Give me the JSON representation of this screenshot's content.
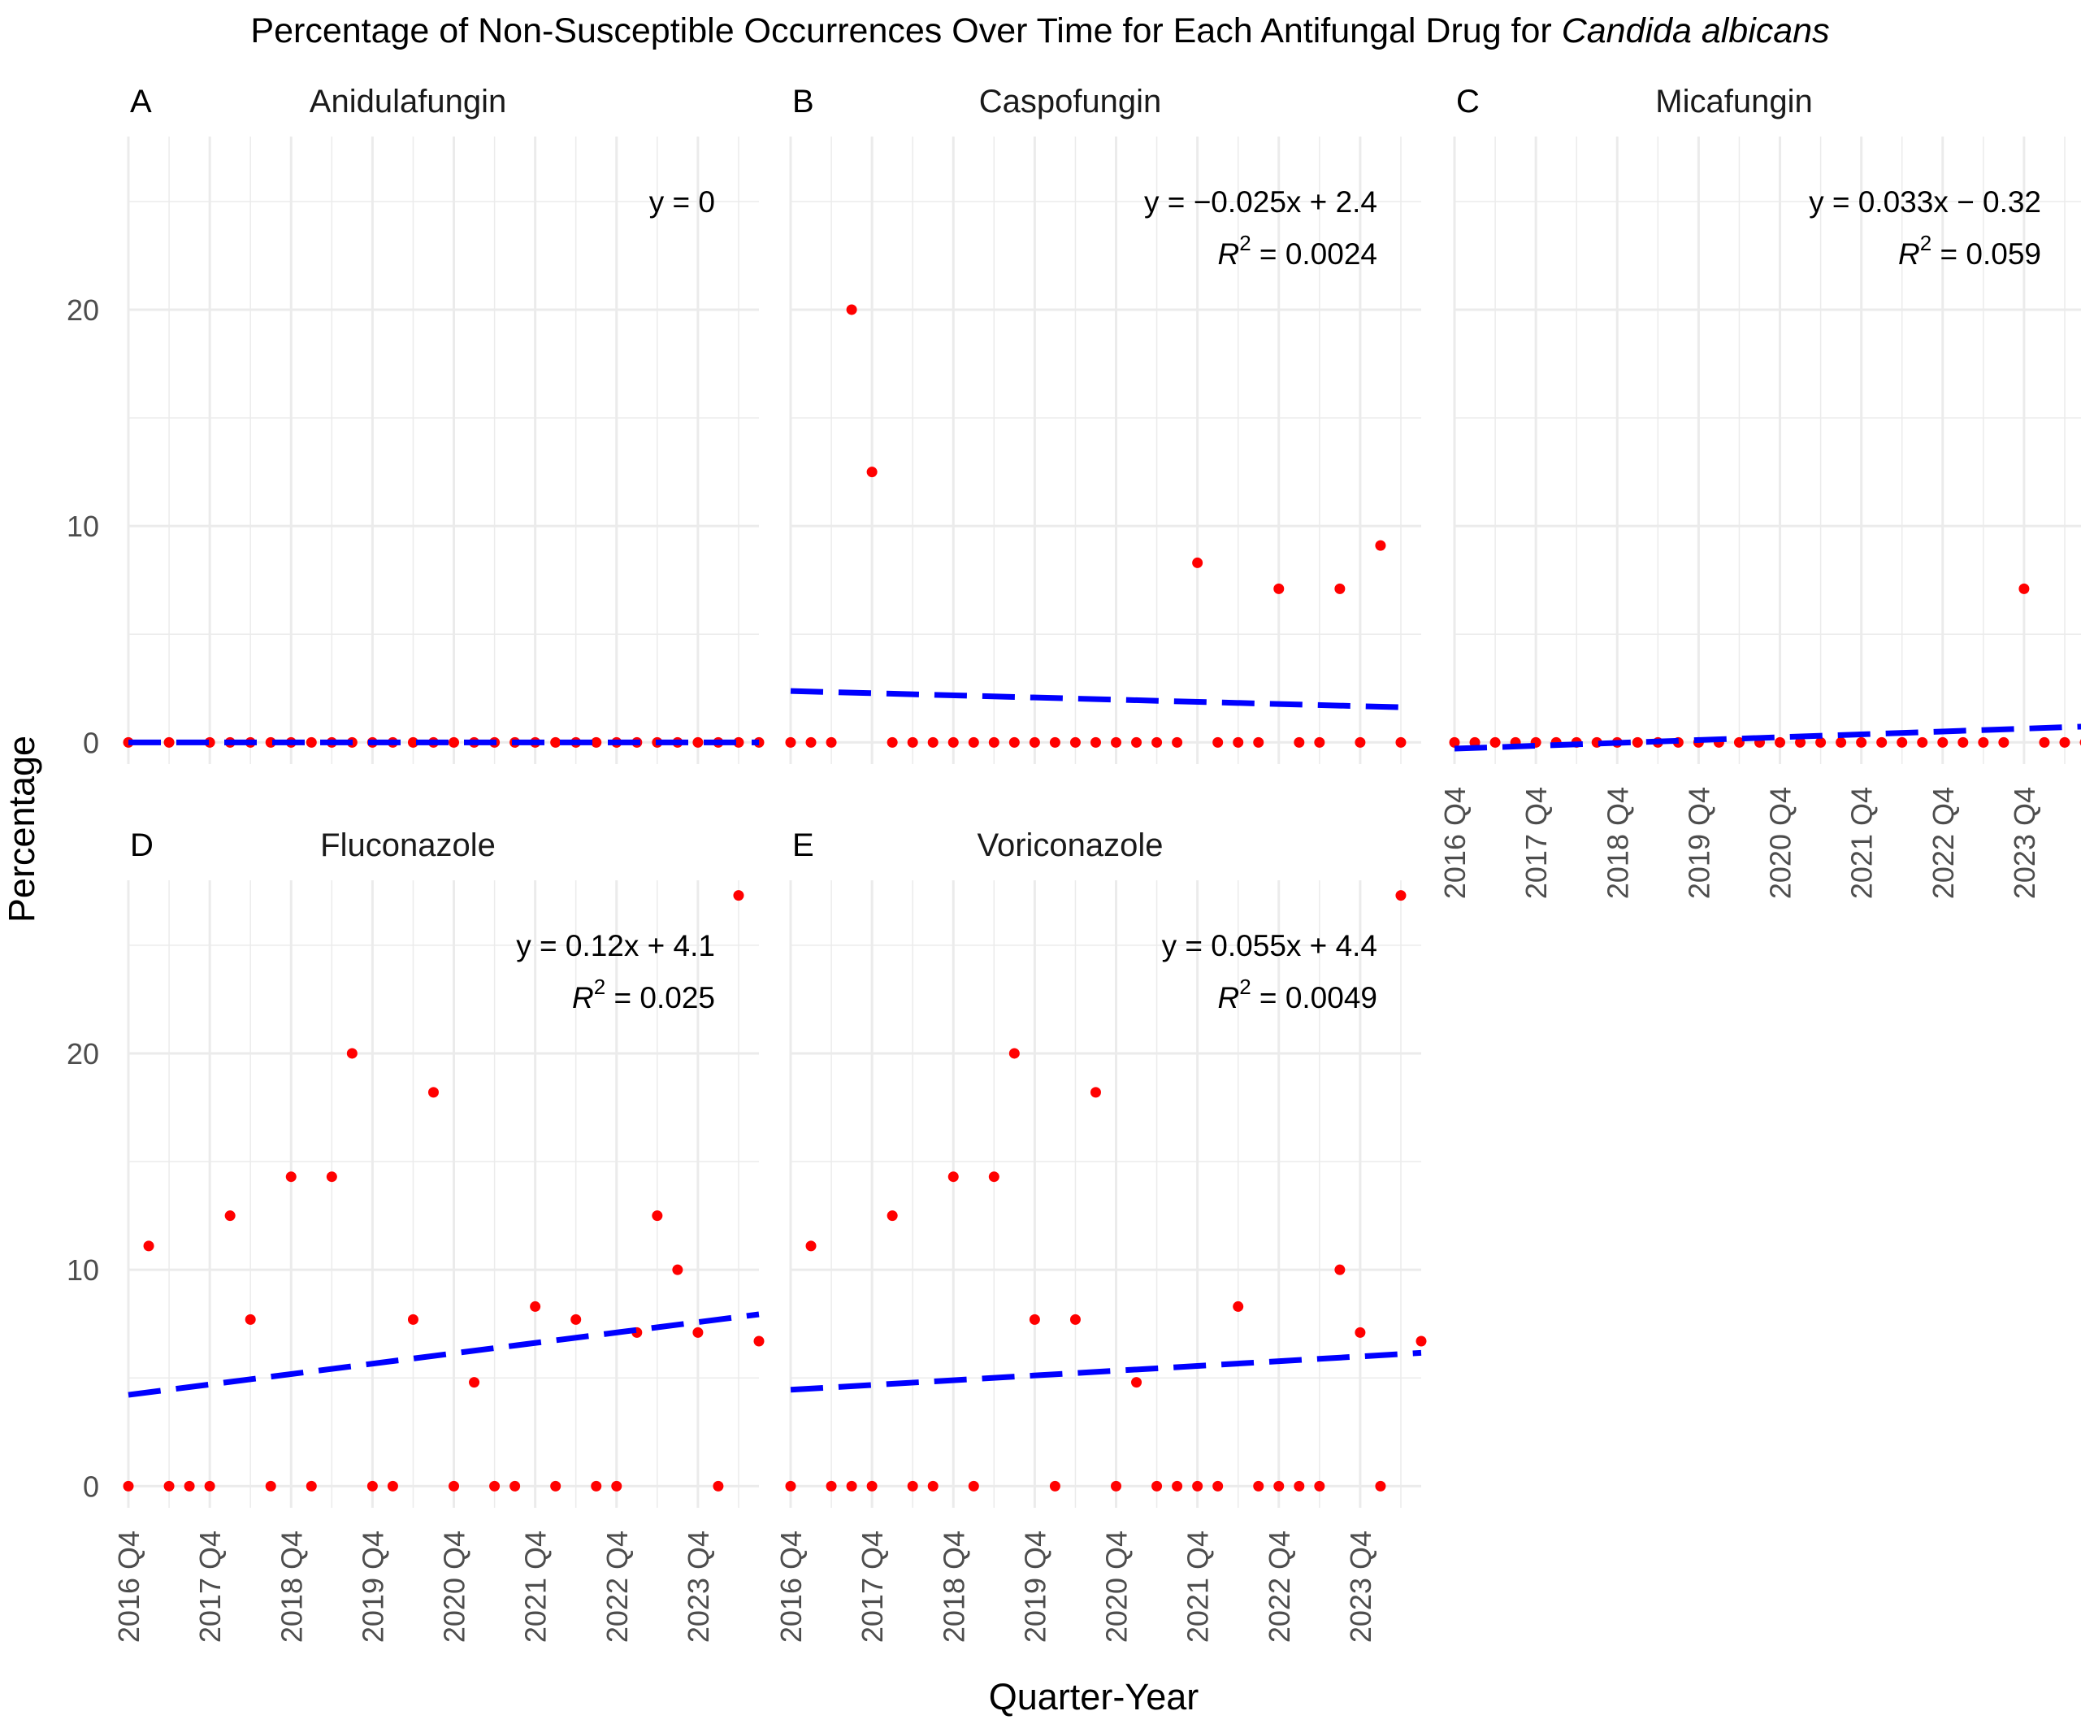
{
  "chart_data": {
    "type": "scatter",
    "title": {
      "prefix": "Percentage of Non-Susceptible Occurrences Over Time for Each Antifungal Drug for ",
      "italic": "Candida albicans"
    },
    "xlabel": "Quarter-Year",
    "ylabel": "Percentage",
    "x_categories": [
      "2016 Q4",
      "2017 Q4",
      "2018 Q4",
      "2019 Q4",
      "2020 Q4",
      "2021 Q4",
      "2022 Q4",
      "2023 Q4"
    ],
    "x_range": [
      1,
      32
    ],
    "y_ticks": [
      0,
      10,
      20
    ],
    "ylim": [
      -1,
      28
    ],
    "colors": {
      "points": "#ff0000",
      "trend": "#0000ff",
      "grid": "#ebebeb"
    },
    "panels": [
      {
        "tag": "A",
        "drug": "Anidulafungin",
        "equation": "y = 0",
        "r2_label": "",
        "trend": {
          "slope": 0,
          "intercept": 0
        },
        "points": [
          [
            1,
            0
          ],
          [
            3,
            0
          ],
          [
            5,
            0
          ],
          [
            6,
            0
          ],
          [
            7,
            0
          ],
          [
            8,
            0
          ],
          [
            9,
            0
          ],
          [
            10,
            0
          ],
          [
            11,
            0
          ],
          [
            12,
            0
          ],
          [
            13,
            0
          ],
          [
            14,
            0
          ],
          [
            15,
            0
          ],
          [
            16,
            0
          ],
          [
            17,
            0
          ],
          [
            18,
            0
          ],
          [
            19,
            0
          ],
          [
            20,
            0
          ],
          [
            21,
            0
          ],
          [
            22,
            0
          ],
          [
            23,
            0
          ],
          [
            24,
            0
          ],
          [
            25,
            0
          ],
          [
            26,
            0
          ],
          [
            27,
            0
          ],
          [
            28,
            0
          ],
          [
            29,
            0
          ],
          [
            30,
            0
          ],
          [
            31,
            0
          ],
          [
            32,
            0
          ]
        ]
      },
      {
        "tag": "B",
        "drug": "Caspofungin",
        "equation": "y = −0.025x + 2.4",
        "r2_label": "= 0.0024",
        "trend": {
          "slope": -0.025,
          "intercept": 2.4
        },
        "points": [
          [
            1,
            0
          ],
          [
            2,
            0
          ],
          [
            3,
            0
          ],
          [
            4,
            20
          ],
          [
            5,
            12.5
          ],
          [
            6,
            0
          ],
          [
            7,
            0
          ],
          [
            8,
            0
          ],
          [
            9,
            0
          ],
          [
            10,
            0
          ],
          [
            11,
            0
          ],
          [
            12,
            0
          ],
          [
            13,
            0
          ],
          [
            14,
            0
          ],
          [
            15,
            0
          ],
          [
            16,
            0
          ],
          [
            17,
            0
          ],
          [
            18,
            0
          ],
          [
            19,
            0
          ],
          [
            20,
            0
          ],
          [
            21,
            8.3
          ],
          [
            22,
            0
          ],
          [
            23,
            0
          ],
          [
            24,
            0
          ],
          [
            25,
            7.1
          ],
          [
            26,
            0
          ],
          [
            27,
            0
          ],
          [
            28,
            7.1
          ],
          [
            29,
            0
          ],
          [
            30,
            9.1
          ],
          [
            31,
            0
          ]
        ]
      },
      {
        "tag": "C",
        "drug": "Micafungin",
        "equation": "y = 0.033x − 0.32",
        "r2_label": "= 0.059",
        "trend": {
          "slope": 0.033,
          "intercept": -0.32
        },
        "points": [
          [
            1,
            0
          ],
          [
            2,
            0
          ],
          [
            3,
            0
          ],
          [
            4,
            0
          ],
          [
            5,
            0
          ],
          [
            6,
            0
          ],
          [
            7,
            0
          ],
          [
            8,
            0
          ],
          [
            9,
            0
          ],
          [
            10,
            0
          ],
          [
            11,
            0
          ],
          [
            12,
            0
          ],
          [
            13,
            0
          ],
          [
            14,
            0
          ],
          [
            15,
            0
          ],
          [
            16,
            0
          ],
          [
            17,
            0
          ],
          [
            18,
            0
          ],
          [
            19,
            0
          ],
          [
            20,
            0
          ],
          [
            21,
            0
          ],
          [
            22,
            0
          ],
          [
            23,
            0
          ],
          [
            24,
            0
          ],
          [
            25,
            0
          ],
          [
            26,
            0
          ],
          [
            27,
            0
          ],
          [
            28,
            0
          ],
          [
            29,
            7.1
          ],
          [
            30,
            0
          ],
          [
            31,
            0
          ],
          [
            32,
            0
          ]
        ]
      },
      {
        "tag": "D",
        "drug": "Fluconazole",
        "equation": "y = 0.12x + 4.1",
        "r2_label": "= 0.025",
        "trend": {
          "slope": 0.12,
          "intercept": 4.1
        },
        "points": [
          [
            1,
            0
          ],
          [
            2,
            11.1
          ],
          [
            3,
            0
          ],
          [
            4,
            0
          ],
          [
            5,
            0
          ],
          [
            6,
            12.5
          ],
          [
            7,
            7.7
          ],
          [
            8,
            0
          ],
          [
            9,
            14.3
          ],
          [
            10,
            0
          ],
          [
            11,
            14.3
          ],
          [
            12,
            20
          ],
          [
            13,
            0
          ],
          [
            14,
            0
          ],
          [
            15,
            7.7
          ],
          [
            16,
            18.2
          ],
          [
            17,
            0
          ],
          [
            18,
            4.8
          ],
          [
            19,
            0
          ],
          [
            20,
            0
          ],
          [
            21,
            8.3
          ],
          [
            22,
            0
          ],
          [
            23,
            7.7
          ],
          [
            24,
            0
          ],
          [
            25,
            0
          ],
          [
            26,
            7.1
          ],
          [
            27,
            12.5
          ],
          [
            28,
            10
          ],
          [
            29,
            7.1
          ],
          [
            30,
            0
          ],
          [
            31,
            27.3
          ],
          [
            32,
            6.7
          ]
        ]
      },
      {
        "tag": "E",
        "drug": "Voriconazole",
        "equation": "y = 0.055x + 4.4",
        "r2_label": "= 0.0049",
        "trend": {
          "slope": 0.055,
          "intercept": 4.4
        },
        "points": [
          [
            1,
            0
          ],
          [
            2,
            11.1
          ],
          [
            3,
            0
          ],
          [
            4,
            0
          ],
          [
            5,
            0
          ],
          [
            6,
            12.5
          ],
          [
            7,
            0
          ],
          [
            8,
            0
          ],
          [
            9,
            14.3
          ],
          [
            10,
            0
          ],
          [
            11,
            14.3
          ],
          [
            12,
            20
          ],
          [
            13,
            7.7
          ],
          [
            14,
            0
          ],
          [
            15,
            7.7
          ],
          [
            16,
            18.2
          ],
          [
            17,
            0
          ],
          [
            18,
            4.8
          ],
          [
            19,
            0
          ],
          [
            20,
            0
          ],
          [
            21,
            0
          ],
          [
            22,
            0
          ],
          [
            23,
            8.3
          ],
          [
            24,
            0
          ],
          [
            25,
            0
          ],
          [
            26,
            0
          ],
          [
            27,
            0
          ],
          [
            28,
            10
          ],
          [
            29,
            7.1
          ],
          [
            30,
            0
          ],
          [
            31,
            27.3
          ],
          [
            32,
            6.7
          ]
        ]
      }
    ]
  }
}
